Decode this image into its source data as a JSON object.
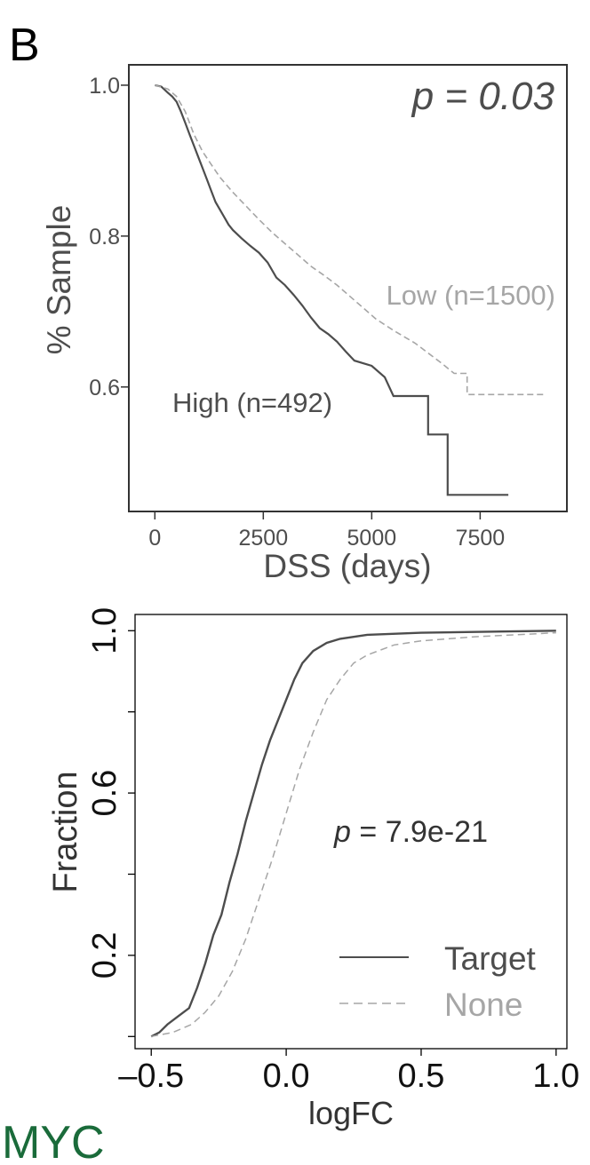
{
  "panel_label": "B",
  "gene_label": "MYC",
  "colors": {
    "dark": "#4d4d4d",
    "light": "#a6a6a6",
    "axis": "#333333",
    "gene": "#1a6b3a"
  },
  "chart_data": [
    {
      "type": "line",
      "subtype": "kaplan-meier",
      "xlabel": "DSS (days)",
      "ylabel": "% Sample",
      "xlim": [
        -600,
        9500
      ],
      "ylim": [
        0.435,
        1.027
      ],
      "x_ticks": [
        0,
        2500,
        5000,
        7500
      ],
      "x_tick_labels": [
        "0",
        "2500",
        "5000",
        "7500"
      ],
      "y_ticks": [
        0.6,
        0.8,
        1.0
      ],
      "y_tick_labels": [
        "0.6",
        "0.8",
        "1.0"
      ],
      "annotation": "p = 0.03",
      "series": [
        {
          "name": "High (n=492)",
          "style": "solid",
          "points": [
            [
              0,
              1.0
            ],
            [
              150,
              0.998
            ],
            [
              300,
              0.99
            ],
            [
              400,
              0.985
            ],
            [
              500,
              0.978
            ],
            [
              600,
              0.965
            ],
            [
              700,
              0.95
            ],
            [
              800,
              0.935
            ],
            [
              900,
              0.92
            ],
            [
              1000,
              0.905
            ],
            [
              1100,
              0.89
            ],
            [
              1200,
              0.875
            ],
            [
              1300,
              0.86
            ],
            [
              1400,
              0.845
            ],
            [
              1500,
              0.835
            ],
            [
              1600,
              0.825
            ],
            [
              1700,
              0.815
            ],
            [
              1800,
              0.808
            ],
            [
              2000,
              0.797
            ],
            [
              2200,
              0.787
            ],
            [
              2400,
              0.778
            ],
            [
              2600,
              0.765
            ],
            [
              2800,
              0.745
            ],
            [
              3000,
              0.735
            ],
            [
              3200,
              0.722
            ],
            [
              3400,
              0.708
            ],
            [
              3600,
              0.692
            ],
            [
              3800,
              0.678
            ],
            [
              4000,
              0.67
            ],
            [
              4200,
              0.66
            ],
            [
              4400,
              0.647
            ],
            [
              4600,
              0.635
            ],
            [
              5000,
              0.628
            ],
            [
              5300,
              0.613
            ],
            [
              5500,
              0.588
            ],
            [
              6300,
              0.588
            ],
            [
              6300,
              0.537
            ],
            [
              6750,
              0.537
            ],
            [
              6750,
              0.457
            ],
            [
              8150,
              0.457
            ]
          ]
        },
        {
          "name": "Low (n=1500)",
          "style": "dashed",
          "points": [
            [
              0,
              1.0
            ],
            [
              300,
              0.995
            ],
            [
              500,
              0.985
            ],
            [
              700,
              0.965
            ],
            [
              900,
              0.935
            ],
            [
              1100,
              0.912
            ],
            [
              1300,
              0.895
            ],
            [
              1500,
              0.878
            ],
            [
              1800,
              0.858
            ],
            [
              2100,
              0.84
            ],
            [
              2400,
              0.822
            ],
            [
              2700,
              0.805
            ],
            [
              3000,
              0.79
            ],
            [
              3300,
              0.775
            ],
            [
              3600,
              0.76
            ],
            [
              3900,
              0.748
            ],
            [
              4200,
              0.735
            ],
            [
              4500,
              0.72
            ],
            [
              4800,
              0.705
            ],
            [
              5100,
              0.69
            ],
            [
              5500,
              0.675
            ],
            [
              6000,
              0.658
            ],
            [
              6300,
              0.645
            ],
            [
              6600,
              0.632
            ],
            [
              6900,
              0.618
            ],
            [
              7200,
              0.618
            ],
            [
              7200,
              0.59
            ],
            [
              9000,
              0.59
            ]
          ]
        }
      ]
    },
    {
      "type": "line",
      "subtype": "cumulative-distribution",
      "xlabel": "logFC",
      "ylabel": "Fraction",
      "xlim": [
        -0.56,
        1.04
      ],
      "ylim": [
        -0.03,
        1.04
      ],
      "x_ticks": [
        -0.5,
        0.0,
        0.5,
        1.0
      ],
      "x_tick_labels": [
        "–0.5",
        "0.0",
        "0.5",
        "1.0"
      ],
      "y_ticks": [
        0.0,
        0.2,
        0.4,
        0.6,
        0.8,
        1.0
      ],
      "y_tick_labels": [
        "",
        "0.2",
        "",
        "0.6",
        "",
        "1.0"
      ],
      "annotation": {
        "italic": "p",
        "rest": " = 7.9e-21"
      },
      "legend_position": "bottom-right",
      "series": [
        {
          "name": "Target",
          "style": "solid",
          "points": [
            [
              -0.5,
              0.0
            ],
            [
              -0.47,
              0.01
            ],
            [
              -0.44,
              0.03
            ],
            [
              -0.4,
              0.05
            ],
            [
              -0.36,
              0.07
            ],
            [
              -0.33,
              0.12
            ],
            [
              -0.3,
              0.18
            ],
            [
              -0.27,
              0.25
            ],
            [
              -0.24,
              0.3
            ],
            [
              -0.21,
              0.38
            ],
            [
              -0.18,
              0.45
            ],
            [
              -0.15,
              0.53
            ],
            [
              -0.12,
              0.6
            ],
            [
              -0.09,
              0.67
            ],
            [
              -0.06,
              0.73
            ],
            [
              -0.03,
              0.78
            ],
            [
              0.0,
              0.83
            ],
            [
              0.03,
              0.88
            ],
            [
              0.06,
              0.92
            ],
            [
              0.1,
              0.95
            ],
            [
              0.15,
              0.97
            ],
            [
              0.2,
              0.98
            ],
            [
              0.3,
              0.99
            ],
            [
              0.5,
              0.995
            ],
            [
              0.8,
              0.998
            ],
            [
              1.0,
              1.0
            ]
          ]
        },
        {
          "name": "None",
          "style": "dashed",
          "points": [
            [
              -0.5,
              0.0
            ],
            [
              -0.42,
              0.01
            ],
            [
              -0.35,
              0.03
            ],
            [
              -0.3,
              0.06
            ],
            [
              -0.25,
              0.1
            ],
            [
              -0.2,
              0.16
            ],
            [
              -0.15,
              0.24
            ],
            [
              -0.1,
              0.34
            ],
            [
              -0.05,
              0.44
            ],
            [
              0.0,
              0.55
            ],
            [
              0.05,
              0.66
            ],
            [
              0.1,
              0.75
            ],
            [
              0.15,
              0.83
            ],
            [
              0.2,
              0.88
            ],
            [
              0.25,
              0.92
            ],
            [
              0.3,
              0.94
            ],
            [
              0.4,
              0.965
            ],
            [
              0.5,
              0.975
            ],
            [
              0.7,
              0.985
            ],
            [
              0.85,
              0.99
            ],
            [
              1.0,
              0.995
            ]
          ]
        }
      ]
    }
  ]
}
